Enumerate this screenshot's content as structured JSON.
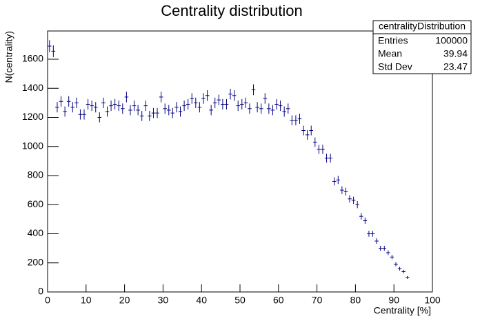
{
  "chart_data": {
    "type": "histogram",
    "title": "Centrality distribution",
    "x_label": "Centrality [%]",
    "y_label": "N(centrality)",
    "color": "#000080",
    "bins": [
      0,
      1,
      2,
      3,
      4,
      5,
      6,
      7,
      8,
      9,
      10,
      11,
      12,
      13,
      14,
      15,
      16,
      17,
      18,
      19,
      20,
      21,
      22,
      23,
      24,
      25,
      26,
      27,
      28,
      29,
      30,
      31,
      32,
      33,
      34,
      35,
      36,
      37,
      38,
      39,
      40,
      41,
      42,
      43,
      44,
      45,
      46,
      47,
      48,
      49,
      50,
      51,
      52,
      53,
      54,
      55,
      56,
      57,
      58,
      59,
      60,
      61,
      62,
      63,
      64,
      65,
      66,
      67,
      68,
      69,
      70,
      71,
      72,
      73,
      74,
      75,
      76,
      77,
      78,
      79,
      80,
      81,
      82,
      83,
      84,
      85,
      86,
      87,
      88,
      89,
      90,
      91,
      92,
      93,
      94,
      95,
      96,
      97,
      98,
      99,
      100
    ],
    "values": [
      1690,
      1655,
      1270,
      1310,
      1240,
      1310,
      1270,
      1300,
      1220,
      1220,
      1290,
      1280,
      1270,
      1200,
      1300,
      1240,
      1280,
      1290,
      1280,
      1260,
      1340,
      1250,
      1280,
      1250,
      1210,
      1280,
      1210,
      1230,
      1230,
      1340,
      1260,
      1250,
      1230,
      1270,
      1240,
      1280,
      1290,
      1330,
      1300,
      1270,
      1330,
      1350,
      1250,
      1300,
      1320,
      1290,
      1290,
      1360,
      1350,
      1280,
      1290,
      1300,
      1260,
      1390,
      1270,
      1260,
      1330,
      1260,
      1250,
      1290,
      1280,
      1240,
      1260,
      1180,
      1180,
      1190,
      1110,
      1080,
      1110,
      1030,
      980,
      980,
      920,
      920,
      760,
      770,
      700,
      690,
      640,
      630,
      600,
      520,
      490,
      400,
      400,
      350,
      300,
      300,
      270,
      240,
      190,
      160,
      140,
      100,
      0,
      0,
      0,
      0,
      0,
      0
    ],
    "xlim": [
      0,
      100
    ],
    "xticks": [
      0,
      10,
      20,
      30,
      40,
      50,
      60,
      70,
      80,
      90,
      100
    ],
    "ylim": [
      0,
      1794
    ],
    "yticks": [
      0,
      200,
      400,
      600,
      800,
      1000,
      1200,
      1400,
      1600
    ],
    "stats": {
      "title": "centralityDistribution",
      "rows": [
        {
          "label": "Entries",
          "value": 100000
        },
        {
          "label": "Mean",
          "value": 39.94
        },
        {
          "label": "Std Dev",
          "value": 23.47
        }
      ]
    }
  }
}
